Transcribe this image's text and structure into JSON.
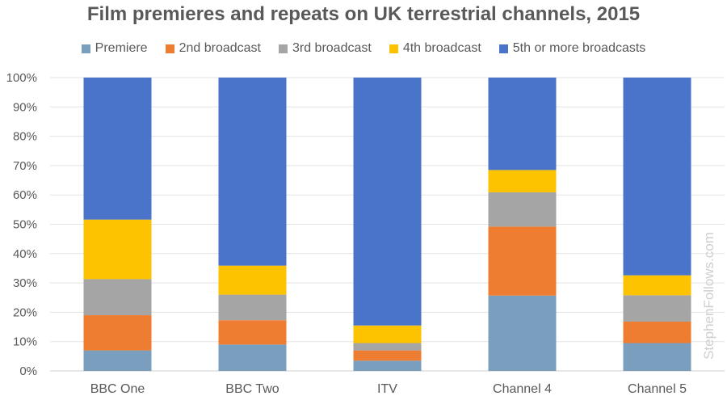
{
  "chart_data": {
    "type": "bar",
    "stacked": true,
    "title": "Film premieres and repeats on UK terrestrial channels, 2015",
    "categories": [
      "BBC One",
      "BBC Two",
      "ITV",
      "Channel 4",
      "Channel 5"
    ],
    "series": [
      {
        "name": "Premiere",
        "color": "#7a9fbe",
        "values": [
          7,
          9,
          3.5,
          25.7,
          9.5
        ]
      },
      {
        "name": "2nd broadcast",
        "color": "#ef7d31",
        "values": [
          12,
          8.3,
          3.5,
          23.5,
          7.3
        ]
      },
      {
        "name": "3rd broadcast",
        "color": "#a5a5a5",
        "values": [
          12.3,
          8.7,
          2.5,
          11.7,
          9
        ]
      },
      {
        "name": "4th broadcast",
        "color": "#fdc200",
        "values": [
          20.3,
          9.9,
          6,
          7.6,
          6.8
        ]
      },
      {
        "name": "5th or more broadcasts",
        "color": "#4a74c9",
        "values": [
          48.4,
          64.1,
          84.5,
          31.5,
          67.4
        ]
      }
    ],
    "yticks": [
      "0%",
      "10%",
      "20%",
      "30%",
      "40%",
      "50%",
      "60%",
      "70%",
      "80%",
      "90%",
      "100%"
    ],
    "ylim": [
      0,
      100
    ],
    "grid": true,
    "legend_position": "top"
  },
  "watermark": "StephenFollows.com"
}
